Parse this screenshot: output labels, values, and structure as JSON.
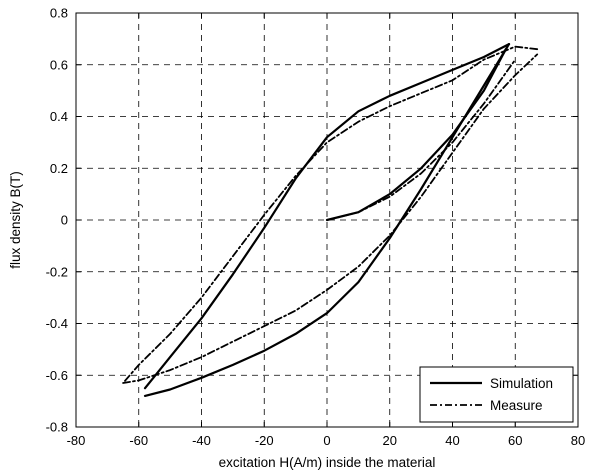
{
  "chart_data": {
    "type": "line",
    "title": "",
    "xlabel": "excitation H(A/m) inside the material",
    "ylabel": "flux density B(T)",
    "xlim": [
      -80,
      80
    ],
    "ylim": [
      -0.8,
      0.8
    ],
    "xticks": [
      -80,
      -60,
      -40,
      -20,
      0,
      20,
      40,
      60,
      80
    ],
    "yticks": [
      -0.8,
      -0.6,
      -0.4,
      -0.2,
      0,
      0.2,
      0.4,
      0.6,
      0.8
    ],
    "xtick_labels": [
      "-80",
      "-60",
      "-40",
      "-20",
      "0",
      "20",
      "40",
      "60",
      "80"
    ],
    "ytick_labels": [
      "-0.8",
      "-0.6",
      "-0.4",
      "-0.2",
      "0",
      "0.2",
      "0.4",
      "0.6",
      "0.8"
    ],
    "grid": true,
    "legend_position": "bottom-right",
    "series": [
      {
        "name": "Simulation",
        "style": "solid",
        "color": "#000000",
        "initial_curve": {
          "x": [
            0,
            10,
            20,
            30,
            40,
            50,
            57
          ],
          "y": [
            0.0,
            0.03,
            0.1,
            0.2,
            0.33,
            0.5,
            0.66
          ]
        },
        "upper_branch": {
          "x": [
            58,
            50,
            40,
            30,
            20,
            10,
            0,
            -10,
            -20,
            -30,
            -40,
            -50,
            -58
          ],
          "y": [
            0.68,
            0.63,
            0.58,
            0.53,
            0.48,
            0.42,
            0.32,
            0.16,
            -0.03,
            -0.21,
            -0.38,
            -0.53,
            -0.65
          ]
        },
        "lower_branch": {
          "x": [
            -58,
            -50,
            -40,
            -30,
            -20,
            -10,
            0,
            10,
            20,
            30,
            40,
            50,
            58
          ],
          "y": [
            -0.68,
            -0.655,
            -0.61,
            -0.56,
            -0.505,
            -0.44,
            -0.36,
            -0.24,
            -0.07,
            0.12,
            0.32,
            0.52,
            0.68
          ]
        }
      },
      {
        "name": "Measure",
        "style": "dash-dot",
        "color": "#000000",
        "initial_curve": {
          "x": [
            0,
            10,
            20,
            30,
            40,
            50,
            60
          ],
          "y": [
            0.0,
            0.03,
            0.09,
            0.18,
            0.3,
            0.45,
            0.62
          ]
        },
        "upper_branch": {
          "x": [
            67,
            60,
            50,
            40,
            30,
            20,
            10,
            0,
            -10,
            -20,
            -30,
            -40,
            -50,
            -60,
            -65
          ],
          "y": [
            0.66,
            0.67,
            0.62,
            0.54,
            0.49,
            0.44,
            0.38,
            0.3,
            0.17,
            0.02,
            -0.14,
            -0.3,
            -0.44,
            -0.56,
            -0.63
          ]
        },
        "lower_branch": {
          "x": [
            -65,
            -60,
            -50,
            -40,
            -30,
            -20,
            -10,
            0,
            10,
            20,
            30,
            40,
            50,
            60,
            67
          ],
          "y": [
            -0.63,
            -0.62,
            -0.58,
            -0.53,
            -0.47,
            -0.41,
            -0.35,
            -0.27,
            -0.18,
            -0.06,
            0.09,
            0.26,
            0.43,
            0.56,
            0.64
          ]
        }
      }
    ]
  }
}
